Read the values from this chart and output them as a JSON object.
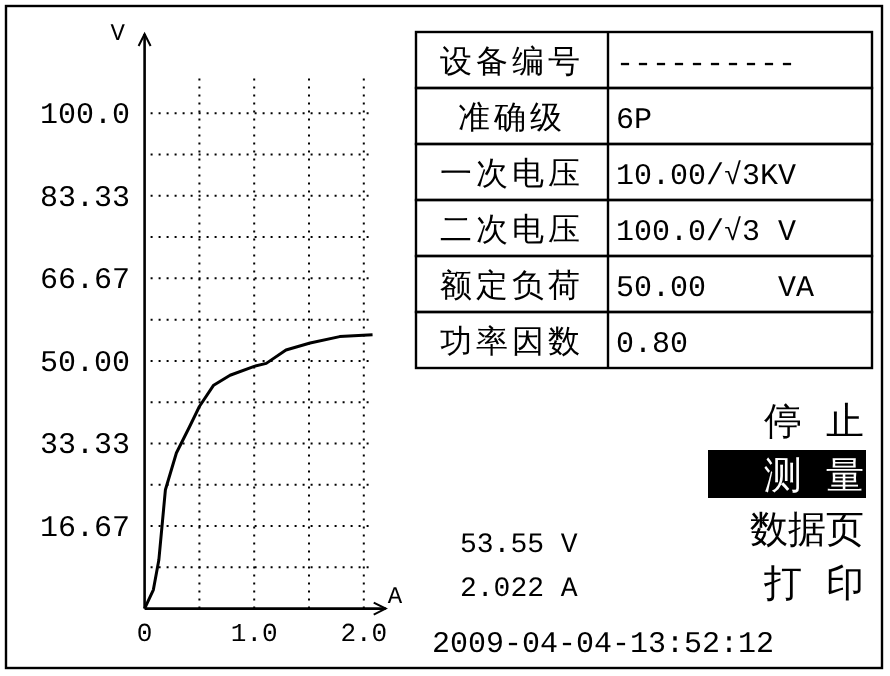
{
  "chart_data": [
    {
      "type": "line",
      "xlabel": "A",
      "ylabel": "V",
      "xlim": [
        0,
        2.2
      ],
      "ylim": [
        0,
        116
      ],
      "xticks": [
        0,
        {
          "value": 0.5,
          "label": null
        },
        {
          "value": 1,
          "label": "1.0"
        },
        {
          "value": 1.5,
          "label": null
        },
        {
          "value": 2,
          "label": "2.0"
        }
      ],
      "yticks": [
        {
          "value": 0,
          "label": null
        },
        {
          "value": 8.33,
          "label": null
        },
        {
          "value": 16.67,
          "label": "16.67"
        },
        {
          "value": 25,
          "label": null
        },
        {
          "value": 33.33,
          "label": "33.33"
        },
        {
          "value": 41.67,
          "label": null
        },
        {
          "value": 50,
          "label": "50.00"
        },
        {
          "value": 58.33,
          "label": null
        },
        {
          "value": 66.67,
          "label": "66.67"
        },
        {
          "value": 75,
          "label": null
        },
        {
          "value": 83.33,
          "label": "83.33"
        },
        {
          "value": 91.67,
          "label": null
        },
        {
          "value": 100,
          "label": "100.0"
        }
      ],
      "tick_labels": "xy",
      "grid": true,
      "marker": "none",
      "line_style": "solid",
      "color": "#000000",
      "x": [
        0,
        0.08,
        0.13,
        0.19,
        0.29,
        0.41,
        0.5,
        0.63,
        0.78,
        1.0,
        1.11,
        1.29,
        1.51,
        1.78,
        2.08
      ],
      "values": [
        0,
        3.8,
        9.8,
        24,
        31.4,
        36.7,
        40.8,
        45.1,
        47.1,
        48.9,
        49.5,
        52.2,
        53.6,
        54.9,
        55.3
      ]
    },
    {
      "type": "other",
      "annotations": [
        "设备编号",
        "----------",
        "准确级",
        "6P",
        "一次电压",
        "10.00/√3KV",
        "二次电压",
        "100.0/√3 V",
        "额定负荷",
        "50.00    VA",
        "功率因数",
        "0.80",
        "停  止",
        "测  量",
        "数据页",
        "打  印",
        "53.55 V",
        "2.022 A",
        "2009-04-04-13:52:12"
      ]
    }
  ]
}
